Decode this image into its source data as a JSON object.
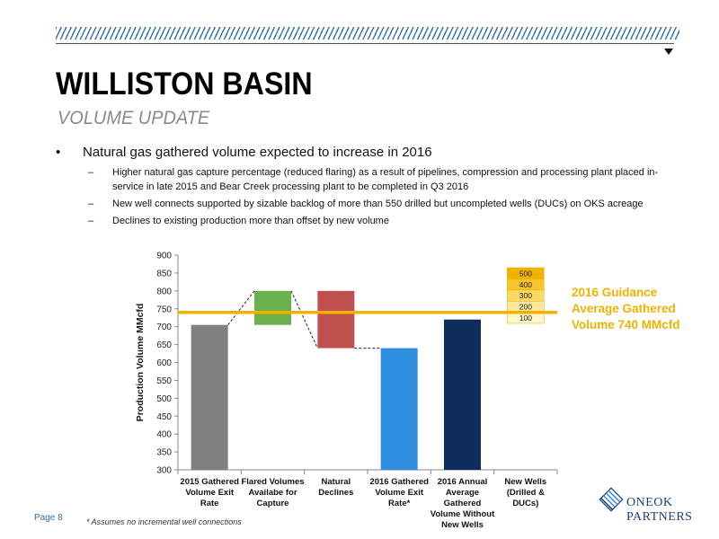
{
  "slide": {
    "title": "WILLISTON BASIN",
    "subtitle": "VOLUME UPDATE",
    "bullet": "Natural gas gathered volume expected to increase in 2016",
    "bullet_marker": "•",
    "sub_marker": "–",
    "subbullets": [
      "Higher natural gas capture percentage (reduced flaring) as a result of pipelines, compression and processing plant placed in-service in late 2015 and Bear Creek processing plant to be completed in Q3 2016",
      "New well connects supported by sizable backlog of more than 550 drilled but uncompleted wells (DUCs) on OKS acreage",
      "Declines to existing production more than offset by new volume"
    ],
    "page_label": "Page 8",
    "footnote": "* Assumes no incremental well connections",
    "logo": {
      "line1": "ONEOK",
      "line2": "PARTNERS",
      "icon": "oneok-diamond-logo-icon",
      "color": "#1b3f7a"
    }
  },
  "chart_data": {
    "type": "bar",
    "subtype": "waterfall",
    "ylabel": "Production Volume MMcfd",
    "xlabel": "",
    "ylim": [
      300,
      900
    ],
    "yticks": [
      300,
      350,
      400,
      450,
      500,
      550,
      600,
      650,
      700,
      750,
      800,
      850,
      900
    ],
    "categories": [
      [
        "2015 Gathered",
        "Volume Exit",
        "Rate"
      ],
      [
        "Flared Volumes",
        "Availabe for",
        "Capture"
      ],
      [
        "Natural",
        "Declines"
      ],
      [
        "2016 Gathered",
        "Volume Exit",
        "Rate*"
      ],
      [
        "2016 Annual",
        "Average",
        "Gathered",
        "Volume Without",
        "New Wells"
      ],
      [
        "New Wells",
        "(Drilled &",
        "DUCs)"
      ]
    ],
    "bars": [
      {
        "base": 300,
        "top": 705,
        "color": "#808080"
      },
      {
        "base": 705,
        "top": 800,
        "color": "#6ab04c"
      },
      {
        "base": 640,
        "top": 800,
        "color": "#c0504d"
      },
      {
        "base": 300,
        "top": 640,
        "color": "#2e8fe0"
      },
      {
        "base": 300,
        "top": 720,
        "color": "#0f2d5c"
      },
      {
        "base": null,
        "top": null,
        "color": null
      }
    ],
    "new_wells_stack": {
      "labels": [
        "100",
        "200",
        "300",
        "400",
        "500"
      ],
      "colors": [
        "#fff6cc",
        "#fde79a",
        "#fcd867",
        "#f7c52a",
        "#f0b400"
      ]
    },
    "guidance": {
      "value": 740,
      "label_lines": [
        "2016 Guidance",
        "Average Gathered",
        "Volume 740 MMcfd"
      ],
      "color": "#f2b100"
    },
    "grid": false,
    "legend": "none"
  }
}
